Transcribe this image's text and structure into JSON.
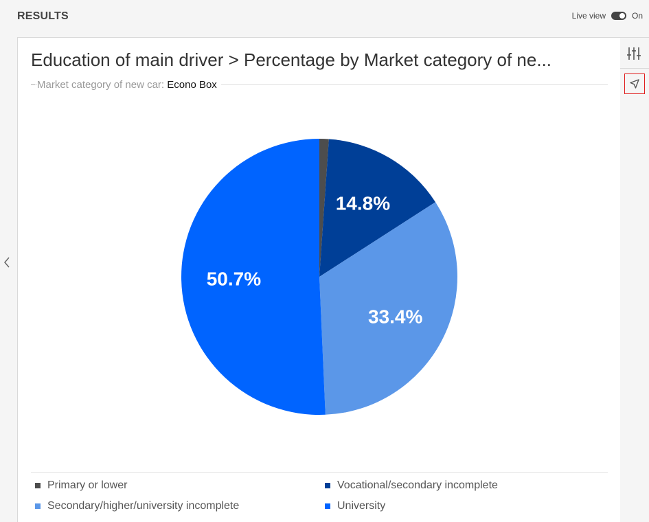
{
  "header": {
    "title": "RESULTS",
    "live_view_label": "Live view",
    "live_view_state": "On"
  },
  "chart_data": {
    "type": "pie",
    "title": "Education of main driver > Percentage by Market category of ne...",
    "subtitle_label": "Market category of new car:",
    "subtitle_value": "Econo Box",
    "slices": [
      {
        "name": "Primary or lower",
        "value": 1.1,
        "label": "",
        "color": "#4d4d4d"
      },
      {
        "name": "Vocational/secondary incomplete",
        "value": 14.8,
        "label": "14.8%",
        "color": "#003f97"
      },
      {
        "name": "Secondary/higher/university incomplete",
        "value": 33.4,
        "label": "33.4%",
        "color": "#5b97e8"
      },
      {
        "name": "University",
        "value": 50.7,
        "label": "50.7%",
        "color": "#0064ff"
      }
    ],
    "legend_position": "bottom"
  },
  "toolbar": {
    "filters_icon": "sliders-icon",
    "select_icon": "cursor-arrow-icon"
  }
}
